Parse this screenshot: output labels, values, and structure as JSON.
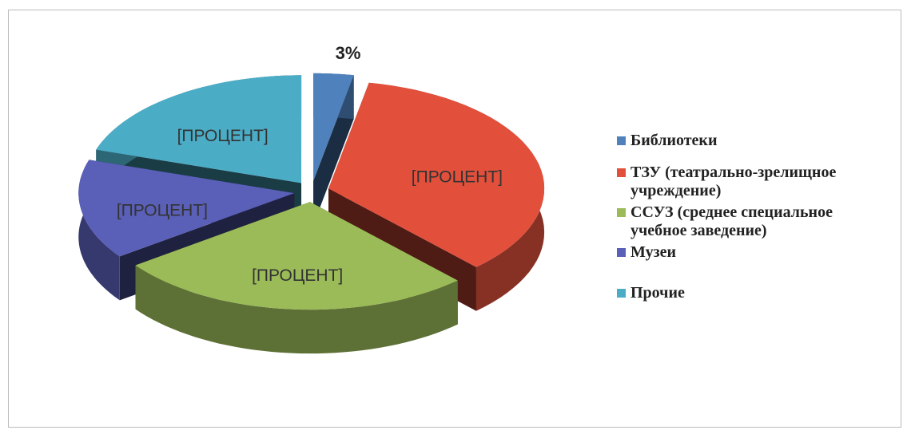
{
  "chart_data": {
    "type": "pie",
    "categories": [
      "Библиотеки",
      "ТЗУ (театрально-зрелищное учреждение)",
      "ССУЗ (среднее специальное учебное заведение)",
      "Музеи",
      "Прочие"
    ],
    "values": [
      3,
      35,
      27,
      15,
      20
    ],
    "value_labels": [
      "3%",
      "[ПРОЦЕНТ]",
      "[ПРОЦЕНТ]",
      "[ПРОЦЕНТ]",
      "[ПРОЦЕНТ]"
    ],
    "colors": [
      "#4f81bd",
      "#e2503c",
      "#9bbb59",
      "#5a5fb8",
      "#4bacc6"
    ],
    "legend": "right",
    "three_d": true,
    "exploded": true
  }
}
